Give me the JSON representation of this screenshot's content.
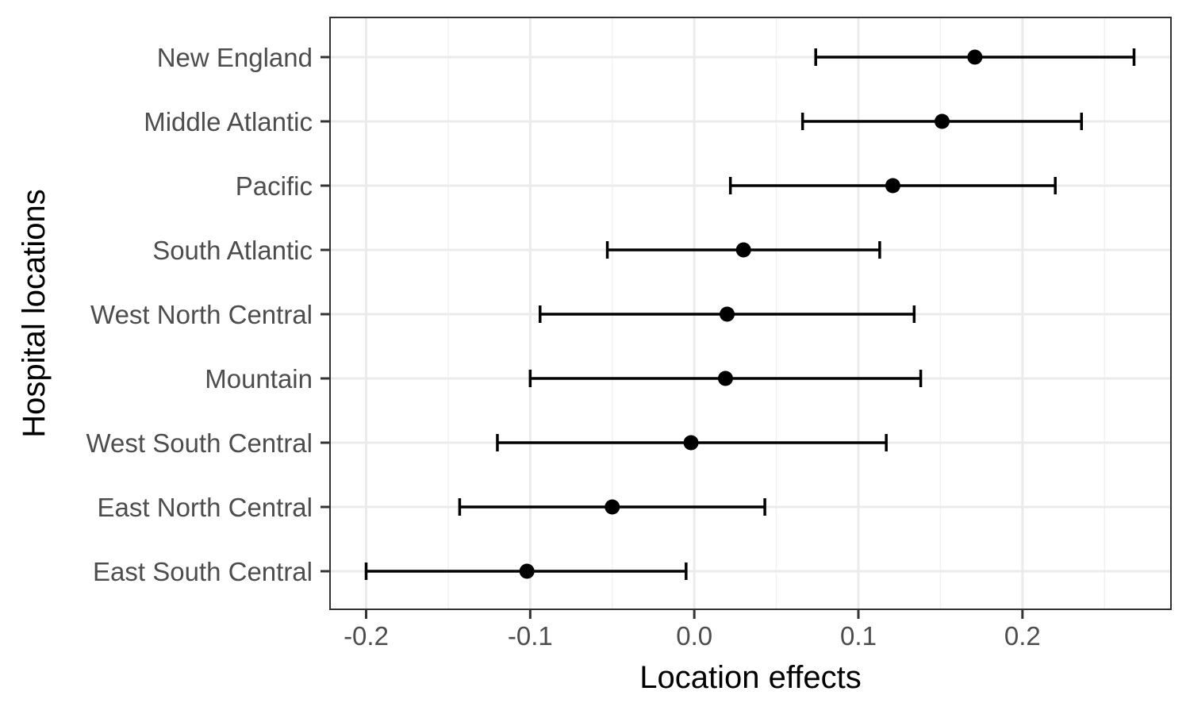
{
  "chart_data": {
    "type": "scatter",
    "subtype": "point-range",
    "title": "",
    "xlabel": "Location effects",
    "ylabel": "Hospital locations",
    "xlim": [
      -0.222,
      0.2905
    ],
    "x_ticks": [
      -0.2,
      -0.1,
      0.0,
      0.1,
      0.2
    ],
    "x_tick_labels": [
      "-0.2",
      "-0.1",
      "0.0",
      "0.1",
      "0.2"
    ],
    "grid": true,
    "legend": "none",
    "categories": [
      "New England",
      "Middle Atlantic",
      "Pacific",
      "South Atlantic",
      "West North Central",
      "Mountain",
      "West South Central",
      "East North Central",
      "East South Central"
    ],
    "series": [
      {
        "estimate": [
          0.171,
          0.151,
          0.121,
          0.03,
          0.02,
          0.019,
          -0.002,
          -0.05,
          -0.102
        ],
        "lower": [
          0.074,
          0.066,
          0.022,
          -0.053,
          -0.094,
          -0.1,
          -0.12,
          -0.143,
          -0.2
        ],
        "upper": [
          0.268,
          0.236,
          0.22,
          0.113,
          0.134,
          0.138,
          0.117,
          0.043,
          -0.005
        ]
      }
    ],
    "colors": {
      "point": "#000000",
      "grid_major": "#ebebeb",
      "grid_minor": "#f2f2f2",
      "panel_border": "#333333",
      "tick_text": "#4d4d4d"
    }
  }
}
